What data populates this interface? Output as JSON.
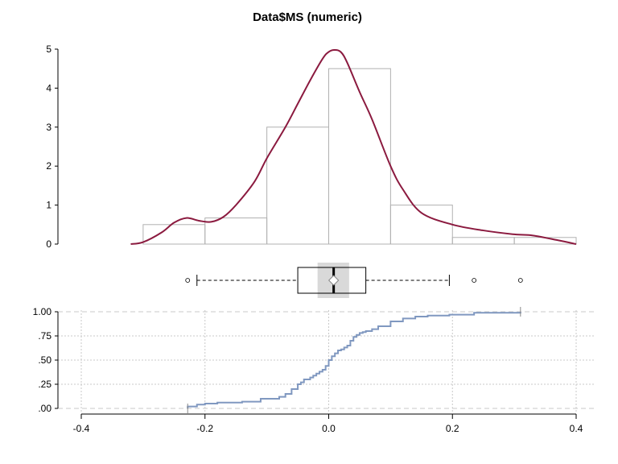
{
  "chart_data": {
    "title": "Data$MS (numeric)",
    "type": "histogram+density+boxplot+ecdf",
    "x_axis": {
      "range": [
        -0.4,
        0.4
      ],
      "ticks": [
        "-0.4",
        "-0.2",
        "0.0",
        "0.2",
        "0.4"
      ],
      "tick_values": [
        -0.4,
        -0.2,
        0.0,
        0.2,
        0.4
      ]
    },
    "histogram": {
      "bin_edges": [
        -0.3,
        -0.2,
        -0.1,
        0.0,
        0.1,
        0.2,
        0.3,
        0.4
      ],
      "densities": [
        0.5,
        0.67,
        3.0,
        4.5,
        1.0,
        0.17,
        0.17
      ],
      "y_ticks": [
        "0",
        "1",
        "2",
        "3",
        "4",
        "5"
      ],
      "y_tick_values": [
        0,
        1,
        2,
        3,
        4,
        5
      ],
      "bar_color": "#b0b0b0"
    },
    "density_curve": {
      "color": "#8b1a3f",
      "x": [
        -0.32,
        -0.3,
        -0.27,
        -0.25,
        -0.23,
        -0.21,
        -0.19,
        -0.17,
        -0.15,
        -0.12,
        -0.1,
        -0.07,
        -0.05,
        -0.03,
        -0.01,
        0.0,
        0.01,
        0.02,
        0.03,
        0.05,
        0.07,
        0.1,
        0.12,
        0.15,
        0.2,
        0.25,
        0.3,
        0.33,
        0.37,
        0.4
      ],
      "y": [
        0.0,
        0.05,
        0.3,
        0.55,
        0.67,
        0.6,
        0.57,
        0.7,
        1.0,
        1.6,
        2.2,
        3.0,
        3.6,
        4.2,
        4.75,
        4.93,
        4.98,
        4.92,
        4.65,
        3.9,
        3.2,
        2.0,
        1.4,
        0.8,
        0.5,
        0.35,
        0.25,
        0.22,
        0.1,
        0.0
      ]
    },
    "boxplot": {
      "whisker_low": -0.213,
      "q1": -0.05,
      "median": 0.008,
      "q3": 0.06,
      "whisker_high": 0.195,
      "mean": 0.008,
      "notch_low": -0.018,
      "notch_high": 0.033,
      "outliers": [
        -0.228,
        0.235,
        0.31
      ]
    },
    "ecdf": {
      "color": "#8098c0",
      "y_ticks": [
        ".00",
        ".25",
        ".50",
        ".75",
        "1.00"
      ],
      "y_tick_values": [
        0.0,
        0.25,
        0.5,
        0.75,
        1.0
      ],
      "x": [
        -0.228,
        -0.213,
        -0.2,
        -0.18,
        -0.14,
        -0.11,
        -0.08,
        -0.07,
        -0.06,
        -0.05,
        -0.045,
        -0.04,
        -0.03,
        -0.025,
        -0.02,
        -0.015,
        -0.01,
        -0.005,
        0.0,
        0.005,
        0.01,
        0.015,
        0.02,
        0.025,
        0.03,
        0.035,
        0.04,
        0.045,
        0.05,
        0.055,
        0.06,
        0.07,
        0.08,
        0.1,
        0.12,
        0.14,
        0.16,
        0.195,
        0.235,
        0.31
      ],
      "y": [
        0.02,
        0.04,
        0.05,
        0.06,
        0.07,
        0.1,
        0.12,
        0.15,
        0.2,
        0.25,
        0.27,
        0.3,
        0.32,
        0.34,
        0.36,
        0.38,
        0.4,
        0.44,
        0.5,
        0.54,
        0.57,
        0.6,
        0.61,
        0.63,
        0.65,
        0.7,
        0.74,
        0.76,
        0.78,
        0.79,
        0.8,
        0.82,
        0.85,
        0.9,
        0.93,
        0.95,
        0.96,
        0.97,
        0.99,
        1.0
      ]
    }
  }
}
